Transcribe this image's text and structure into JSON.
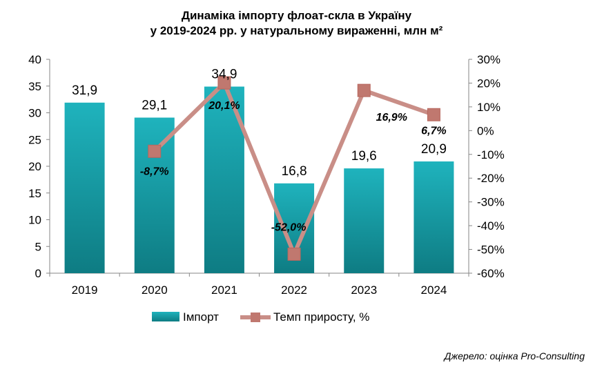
{
  "chart_data": {
    "type": "bar+line",
    "title_line1": "Динаміка імпорту флоат-скла в Україну",
    "title_line2": "у 2019-2024 рр. у натуральному вираженні, млн м²",
    "categories": [
      "2019",
      "2020",
      "2021",
      "2022",
      "2023",
      "2024"
    ],
    "bar_series": {
      "name": "Імпорт",
      "values": [
        31.9,
        29.1,
        34.9,
        16.8,
        19.6,
        20.9
      ],
      "labels": [
        "31,9",
        "29,1",
        "34,9",
        "16,8",
        "19,6",
        "20,9"
      ],
      "color_top": "#1fb3bd",
      "color_bottom": "#0e7c83"
    },
    "line_series": {
      "name": "Темп приросту, %",
      "values": [
        null,
        -8.7,
        20.1,
        -52.0,
        16.9,
        6.7
      ],
      "labels": [
        "",
        "-8,7%",
        "20,1%",
        "-52,0%",
        "16,9%",
        "6,7%"
      ],
      "color": "#c98e87",
      "marker_color": "#c0786f"
    },
    "y_left": {
      "min": 0,
      "max": 40,
      "step": 5,
      "ticks": [
        "0",
        "5",
        "10",
        "15",
        "20",
        "25",
        "30",
        "35",
        "40"
      ]
    },
    "y_right": {
      "min": -60,
      "max": 30,
      "step": 10,
      "ticks": [
        "-60%",
        "-50%",
        "-40%",
        "-30%",
        "-20%",
        "-10%",
        "0%",
        "10%",
        "20%",
        "30%"
      ]
    },
    "grid": false,
    "legend_position": "bottom"
  },
  "source_text": "Джерело: оцінка Pro-Consulting"
}
